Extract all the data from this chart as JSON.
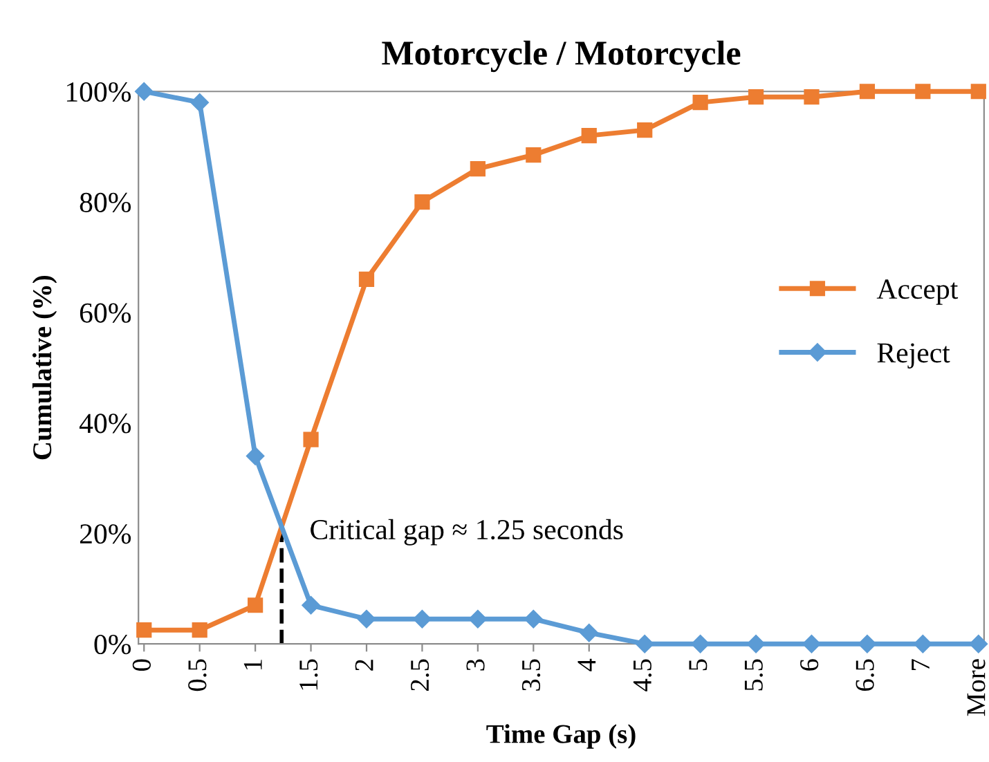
{
  "chart_data": {
    "type": "line",
    "title": "Motorcycle / Motorcycle",
    "xlabel": "Time Gap (s)",
    "ylabel": "Cumulative (%)",
    "categories": [
      "0",
      "0.5",
      "1",
      "1.5",
      "2",
      "2.5",
      "3",
      "3.5",
      "4",
      "4.5",
      "5",
      "5.5",
      "6",
      "6.5",
      "7",
      "More"
    ],
    "series": [
      {
        "name": "Accept",
        "color": "#ed7d31",
        "marker": "square",
        "values": [
          2.5,
          2.5,
          7,
          37,
          66,
          80,
          86,
          88.5,
          92,
          93,
          98,
          99,
          99,
          100,
          100,
          100
        ]
      },
      {
        "name": "Reject",
        "color": "#5b9bd5",
        "marker": "diamond",
        "values": [
          100,
          98,
          34,
          7,
          4.5,
          4.5,
          4.5,
          4.5,
          2,
          0,
          0,
          0,
          0,
          0,
          0,
          0
        ]
      }
    ],
    "ylim": [
      0,
      100
    ],
    "yticks": [
      {
        "value": 0,
        "label": "0%"
      },
      {
        "value": 20,
        "label": "20%"
      },
      {
        "value": 40,
        "label": "40%"
      },
      {
        "value": 60,
        "label": "60%"
      },
      {
        "value": 80,
        "label": "80%"
      },
      {
        "value": 100,
        "label": "100%"
      }
    ],
    "annotations": [
      "Critical gap ≈ 1.25 seconds"
    ],
    "legend": "right",
    "grid": false
  }
}
